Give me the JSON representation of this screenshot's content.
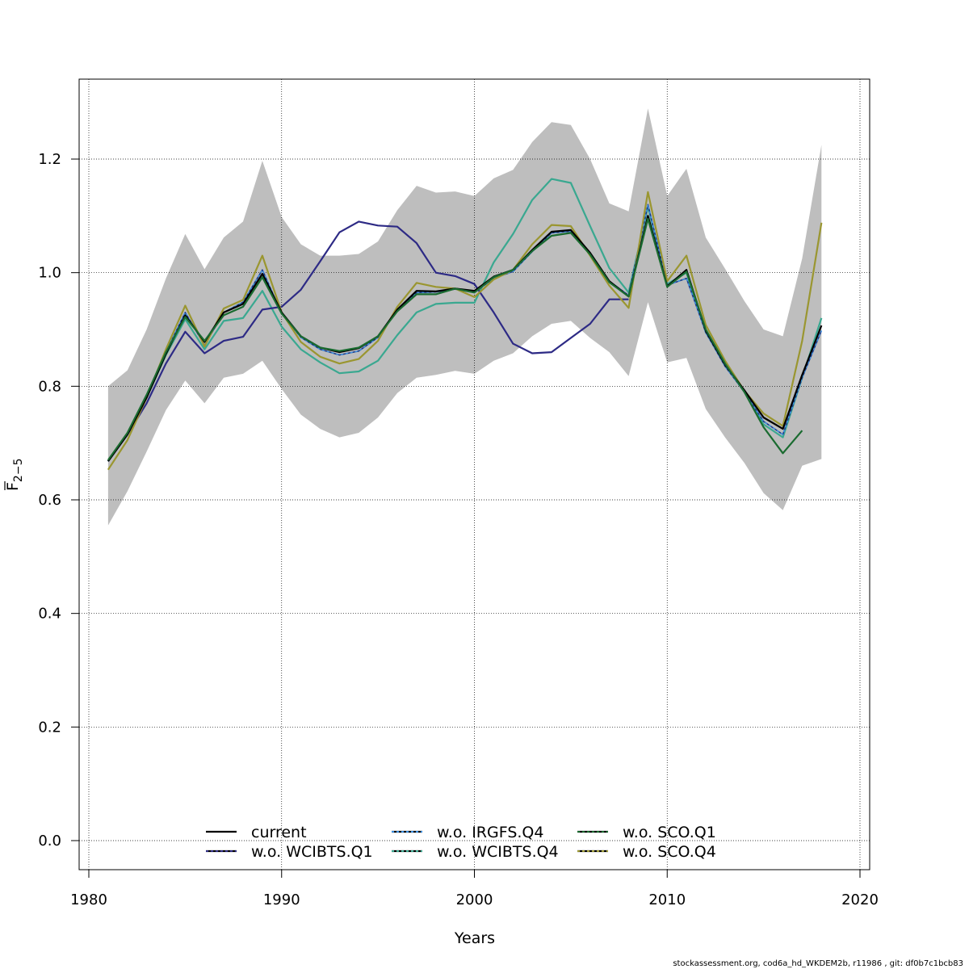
{
  "chart_data": {
    "type": "line",
    "xlabel": "Years",
    "ylabel_main": "F",
    "ylabel_sub": "2−5",
    "xlim": [
      1980,
      2020
    ],
    "ylim": [
      0,
      1.32
    ],
    "x_ticks": [
      1980,
      1990,
      2000,
      2010,
      2020
    ],
    "y_ticks": [
      "0.0",
      "0.2",
      "0.4",
      "0.6",
      "0.8",
      "1.0",
      "1.2"
    ],
    "grid": true,
    "legend_position": "bottom",
    "footer": "stockassessment.org, cod6a_hd_WKDEM2b, r11986 , git: df0b7c1bcb83",
    "band": {
      "x": [
        1981,
        1982,
        1983,
        1984,
        1985,
        1986,
        1987,
        1988,
        1989,
        1990,
        1991,
        1992,
        1993,
        1994,
        1995,
        1996,
        1997,
        1998,
        1999,
        2000,
        2001,
        2002,
        2003,
        2004,
        2005,
        2006,
        2007,
        2008,
        2009,
        2010,
        2011,
        2012,
        2013,
        2014,
        2015,
        2016,
        2017,
        2018
      ],
      "lower": [
        0.555,
        0.615,
        0.685,
        0.758,
        0.81,
        0.77,
        0.815,
        0.822,
        0.845,
        0.795,
        0.75,
        0.725,
        0.71,
        0.718,
        0.745,
        0.788,
        0.815,
        0.82,
        0.827,
        0.822,
        0.845,
        0.858,
        0.888,
        0.91,
        0.915,
        0.885,
        0.86,
        0.818,
        0.948,
        0.842,
        0.85,
        0.76,
        0.71,
        0.665,
        0.612,
        0.582,
        0.66,
        0.672
      ],
      "upper": [
        0.8,
        0.828,
        0.9,
        0.99,
        1.068,
        1.006,
        1.062,
        1.09,
        1.197,
        1.098,
        1.05,
        1.03,
        1.03,
        1.033,
        1.055,
        1.11,
        1.153,
        1.141,
        1.143,
        1.135,
        1.166,
        1.181,
        1.23,
        1.265,
        1.26,
        1.2,
        1.122,
        1.108,
        1.289,
        1.135,
        1.183,
        1.062,
        1.007,
        0.95,
        0.9,
        0.888,
        1.025,
        1.225
      ]
    },
    "x": [
      1981,
      1982,
      1983,
      1984,
      1985,
      1986,
      1987,
      1988,
      1989,
      1990,
      1991,
      1992,
      1993,
      1994,
      1995,
      1996,
      1997,
      1998,
      1999,
      2000,
      2001,
      2002,
      2003,
      2004,
      2005,
      2006,
      2007,
      2008,
      2009,
      2010,
      2011,
      2012,
      2013,
      2014,
      2015,
      2016,
      2017,
      2018
    ],
    "series": [
      {
        "name": "current",
        "color": "#000000",
        "dash": "",
        "values": [
          0.668,
          0.715,
          0.78,
          0.857,
          0.925,
          0.878,
          0.93,
          0.945,
          0.998,
          0.93,
          0.888,
          0.868,
          0.86,
          0.867,
          0.888,
          0.935,
          0.968,
          0.967,
          0.972,
          0.968,
          0.993,
          1.005,
          1.04,
          1.072,
          1.075,
          1.035,
          0.985,
          0.958,
          1.1,
          0.976,
          1.005,
          0.898,
          0.838,
          0.793,
          0.745,
          0.725,
          0.82,
          0.907
        ]
      },
      {
        "name": "w.o. WCIBTS.Q1",
        "color": "#2d2a85",
        "dash": "",
        "values": [
          0.668,
          0.715,
          0.77,
          0.84,
          0.896,
          0.858,
          0.88,
          0.887,
          0.935,
          0.94,
          0.97,
          1.02,
          1.071,
          1.09,
          1.083,
          1.081,
          1.052,
          1.0,
          0.994,
          0.98,
          0.93,
          0.875,
          0.858,
          0.86,
          0.885,
          0.91,
          0.953,
          0.953,
          null,
          null,
          null,
          null,
          null,
          null,
          null,
          null,
          null,
          0.89
        ]
      },
      {
        "name": "w.o. IRGFS.Q4",
        "color": "#3d8fe0",
        "dash": "3,3",
        "values": [
          0.668,
          0.716,
          0.782,
          0.86,
          0.93,
          0.872,
          0.93,
          0.948,
          1.005,
          0.928,
          0.886,
          0.865,
          0.855,
          0.862,
          0.886,
          0.934,
          0.965,
          0.966,
          0.971,
          0.965,
          0.99,
          1.002,
          1.037,
          1.07,
          1.073,
          1.033,
          0.985,
          0.96,
          1.12,
          0.978,
          0.99,
          0.895,
          0.835,
          0.79,
          0.738,
          0.715,
          0.815,
          0.898
        ]
      },
      {
        "name": "w.o. WCIBTS.Q4",
        "color": "#3aa890",
        "dash": "",
        "values": [
          0.668,
          0.715,
          0.78,
          0.855,
          0.918,
          0.865,
          0.915,
          0.92,
          0.968,
          0.905,
          0.865,
          0.842,
          0.823,
          0.826,
          0.845,
          0.89,
          0.93,
          0.945,
          0.947,
          0.947,
          1.018,
          1.068,
          1.128,
          1.165,
          1.158,
          1.082,
          1.008,
          0.965,
          1.116,
          0.98,
          1.0,
          0.895,
          0.838,
          0.79,
          0.733,
          0.71,
          0.815,
          0.92
        ]
      },
      {
        "name": "w.o. SCO.Q1",
        "color": "#1a6b30",
        "dash": "",
        "values": [
          0.67,
          0.718,
          0.785,
          0.86,
          0.922,
          0.88,
          0.925,
          0.94,
          0.992,
          0.928,
          0.888,
          0.868,
          0.862,
          0.868,
          0.888,
          0.932,
          0.962,
          0.962,
          0.972,
          0.965,
          0.992,
          1.005,
          1.038,
          1.065,
          1.07,
          1.032,
          0.983,
          0.958,
          1.095,
          0.975,
          1.002,
          0.9,
          0.84,
          0.79,
          0.728,
          0.682,
          0.722,
          null
        ]
      },
      {
        "name": "w.o. SCO.Q4",
        "color": "#9a9630",
        "dash": "",
        "values": [
          0.653,
          0.705,
          0.78,
          0.865,
          0.942,
          0.87,
          0.937,
          0.952,
          1.03,
          0.93,
          0.878,
          0.852,
          0.84,
          0.848,
          0.88,
          0.94,
          0.982,
          0.975,
          0.972,
          0.957,
          0.988,
          1.005,
          1.05,
          1.084,
          1.082,
          1.03,
          0.977,
          0.938,
          1.142,
          0.985,
          1.03,
          0.908,
          0.845,
          0.792,
          0.752,
          0.73,
          0.88,
          1.088
        ]
      }
    ]
  }
}
